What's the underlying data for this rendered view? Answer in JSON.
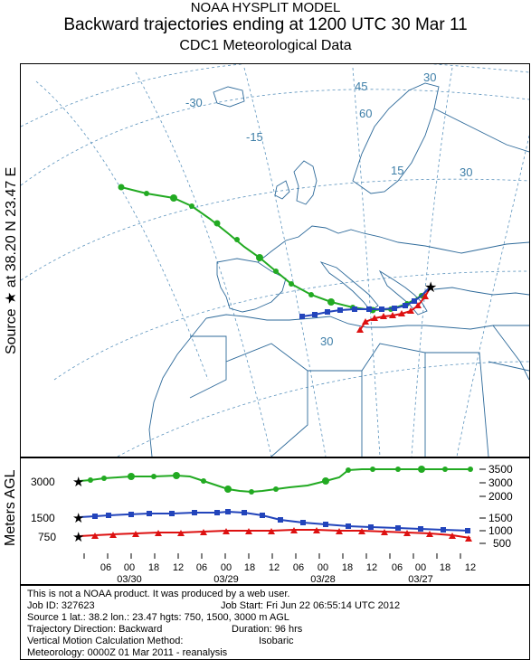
{
  "header": {
    "line1": "NOAA HYSPLIT MODEL",
    "line2": "Backward trajectories ending at 1200 UTC 30 Mar 11",
    "line3": "CDC1 Meteorological Data"
  },
  "side_labels": {
    "source": "Source ★ at   38.20 N   23.47 E",
    "meters": "Meters AGL"
  },
  "map": {
    "grid_labels": [
      "-30",
      "-15",
      "30",
      "45",
      "30",
      "60",
      "30",
      "15"
    ],
    "colors": {
      "coast": "#2e6a9a",
      "grid": "#5b93bd",
      "green": "#22aa22",
      "blue": "#2244bb",
      "red": "#dd1111"
    }
  },
  "vertical": {
    "left_ticks": [
      "3000",
      "1500",
      "750"
    ],
    "right_ticks": [
      "3500",
      "3000",
      "2000",
      "1500",
      "1000",
      "500"
    ],
    "hour_ticks": [
      "06",
      "00",
      "18",
      "12",
      "06",
      "00",
      "18",
      "12",
      "06",
      "00",
      "18",
      "12",
      "06",
      "00",
      "18",
      "12"
    ],
    "date_ticks": [
      "03/30",
      "03/29",
      "03/28",
      "03/27"
    ]
  },
  "info": {
    "l1": "This is not a NOAA product. It was produced by a web user.",
    "l2a": "Job ID: 327623",
    "l2b": "Job Start: Fri Jun 22 06:55:14 UTC 2012",
    "l3a": "Source 1 lat.: 38.2  lon.: 23.47  hgts: 750, 1500, 3000 m AGL",
    "l4a": "Trajectory Direction: Backward",
    "l4b": "Duration: 96 hrs",
    "l5a": "Vertical Motion Calculation Method:",
    "l5b": "Isobaric",
    "l6": "Meteorology: 0000Z 01 Mar 2011 - reanalysis"
  }
}
